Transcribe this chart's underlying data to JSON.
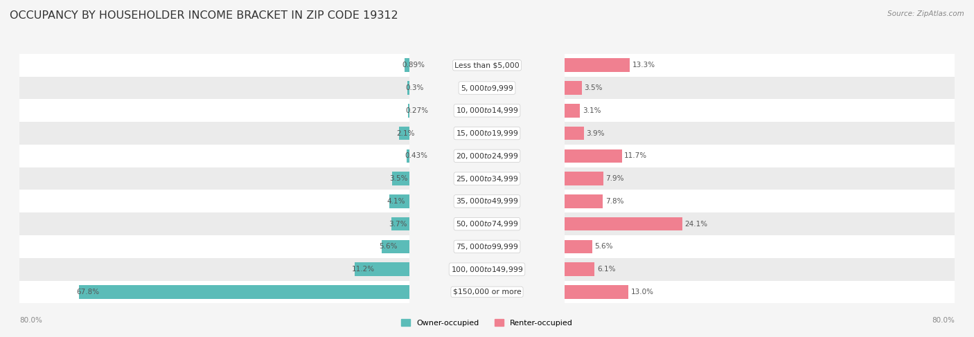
{
  "title": "OCCUPANCY BY HOUSEHOLDER INCOME BRACKET IN ZIP CODE 19312",
  "source": "Source: ZipAtlas.com",
  "categories": [
    "Less than $5,000",
    "$5,000 to $9,999",
    "$10,000 to $14,999",
    "$15,000 to $19,999",
    "$20,000 to $24,999",
    "$25,000 to $34,999",
    "$35,000 to $49,999",
    "$50,000 to $74,999",
    "$75,000 to $99,999",
    "$100,000 to $149,999",
    "$150,000 or more"
  ],
  "owner_values": [
    0.89,
    0.3,
    0.27,
    2.1,
    0.43,
    3.5,
    4.1,
    3.7,
    5.6,
    11.2,
    67.8
  ],
  "renter_values": [
    13.3,
    3.5,
    3.1,
    3.9,
    11.7,
    7.9,
    7.8,
    24.1,
    5.6,
    6.1,
    13.0
  ],
  "owner_color": "#5bbcb8",
  "renter_color": "#f08090",
  "owner_label": "Owner-occupied",
  "renter_label": "Renter-occupied",
  "axis_max": 80.0,
  "axis_left_label": "80.0%",
  "axis_right_label": "80.0%",
  "bar_height": 0.6,
  "background_color": "#f5f5f5",
  "row_bg_white": "#ffffff",
  "row_bg_gray": "#ebebeb",
  "title_fontsize": 11.5,
  "label_fontsize": 7.5,
  "category_fontsize": 7.8,
  "source_fontsize": 7.5
}
